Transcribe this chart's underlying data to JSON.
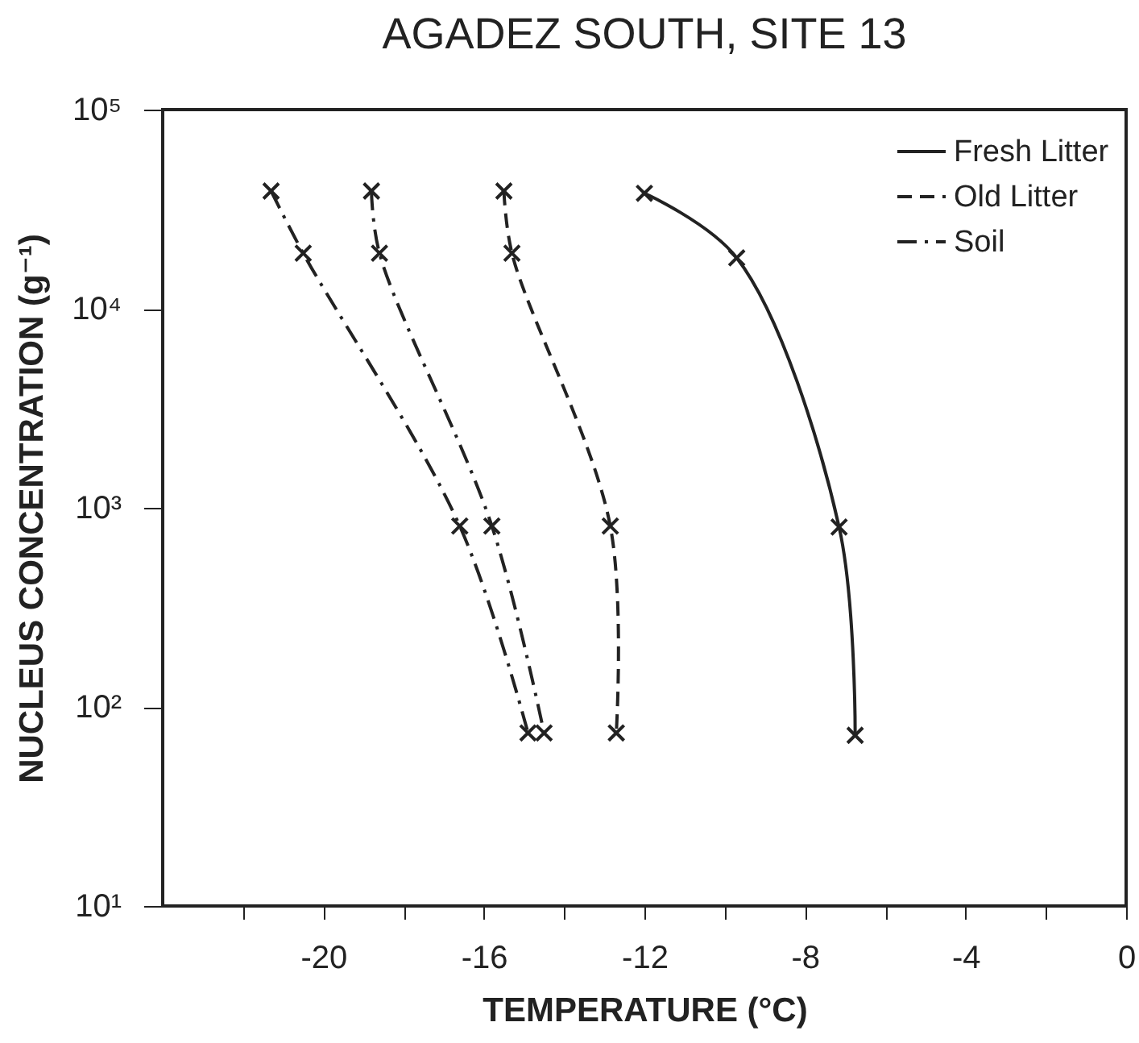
{
  "chart_data": {
    "type": "line",
    "title": "AGADEZ SOUTH, SITE 13",
    "xlabel": "TEMPERATURE (°C)",
    "ylabel": "NUCLEUS CONCENTRATION (g⁻¹)",
    "log": "y",
    "xlim": [
      -24,
      0
    ],
    "ylim": [
      10,
      100000
    ],
    "xticks": [
      {
        "value": -22,
        "label": null
      },
      -20,
      {
        "value": -18,
        "label": null
      },
      -16,
      {
        "value": -14,
        "label": null
      },
      -12,
      {
        "value": -10,
        "label": null
      },
      -8,
      {
        "value": -6,
        "label": null
      },
      -4,
      {
        "value": -2,
        "label": null
      },
      0
    ],
    "yticks": [
      {
        "value": 10,
        "label": "10¹"
      },
      {
        "value": 100,
        "label": "10²"
      },
      {
        "value": 1000,
        "label": "10³"
      },
      {
        "value": 10000,
        "label": "10⁴"
      },
      {
        "value": 100000,
        "label": "10⁵"
      }
    ],
    "grid": false,
    "legend": "top right",
    "marker": "cross",
    "series": [
      {
        "name": "Fresh Litter",
        "color": "#222222",
        "line_style": "solid",
        "x": [
          -12.0,
          -9.7,
          -7.15,
          -6.75
        ],
        "values": [
          38000,
          18000,
          800,
          72
        ]
      },
      {
        "name": "Old Litter",
        "color": "#222222",
        "line_style": "dashed",
        "x": [
          -15.5,
          -15.3,
          -12.85,
          -12.7
        ],
        "values": [
          39000,
          19000,
          810,
          74
        ]
      },
      {
        "name": "Soil",
        "color": "#222222",
        "line_style": "dashdot",
        "x": [
          -18.8,
          -18.6,
          -15.8,
          -14.5
        ],
        "values": [
          39000,
          19000,
          810,
          74
        ]
      },
      {
        "color": "#222222",
        "line_style": "dashdot",
        "x": [
          -21.3,
          -20.5,
          -16.6,
          -14.9
        ],
        "values": [
          39000,
          19000,
          810,
          74
        ]
      }
    ]
  }
}
